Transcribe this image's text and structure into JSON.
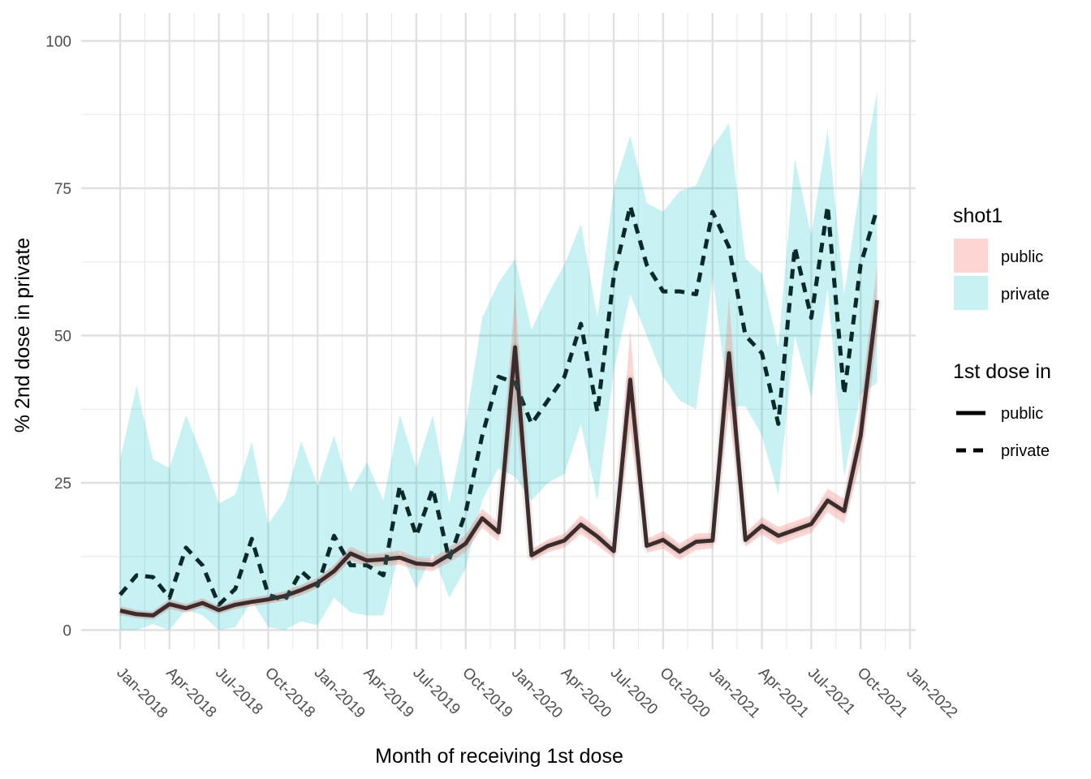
{
  "chart_data": {
    "type": "line",
    "xlabel": "Month of receiving 1st dose",
    "ylabel": "% 2nd dose in private",
    "ylim": [
      0,
      100
    ],
    "yticks": [
      0,
      25,
      50,
      75,
      100
    ],
    "xlim": [
      "2018-01",
      "2022-01"
    ],
    "x_tick_labels": [
      "Jan-2018",
      "Apr-2018",
      "Jul-2018",
      "Oct-2018",
      "Jan-2019",
      "Apr-2019",
      "Jul-2019",
      "Oct-2019",
      "Jan-2020",
      "Apr-2020",
      "Jul-2020",
      "Oct-2020",
      "Jan-2021",
      "Apr-2021",
      "Jul-2021",
      "Oct-2021",
      "Jan-2022"
    ],
    "x": [
      "2018-01",
      "2018-02",
      "2018-03",
      "2018-04",
      "2018-05",
      "2018-06",
      "2018-07",
      "2018-08",
      "2018-09",
      "2018-10",
      "2018-11",
      "2018-12",
      "2019-01",
      "2019-02",
      "2019-03",
      "2019-04",
      "2019-05",
      "2019-06",
      "2019-07",
      "2019-08",
      "2019-09",
      "2019-10",
      "2019-11",
      "2019-12",
      "2020-01",
      "2020-02",
      "2020-03",
      "2020-04",
      "2020-05",
      "2020-06",
      "2020-07",
      "2020-08",
      "2020-09",
      "2020-10",
      "2020-11",
      "2020-12",
      "2021-01",
      "2021-02",
      "2021-03",
      "2021-04",
      "2021-05",
      "2021-06",
      "2021-07",
      "2021-08",
      "2021-09",
      "2021-10",
      "2021-11"
    ],
    "grid": true,
    "legend_position": "right",
    "fill_legend": {
      "title": "shot1",
      "items": [
        {
          "label": "public",
          "color": "#F8766D"
        },
        {
          "label": "private",
          "color": "#00BFC4"
        }
      ]
    },
    "linetype_legend": {
      "title": "1st dose in",
      "items": [
        {
          "label": "public",
          "dash": "solid"
        },
        {
          "label": "private",
          "dash": "dashed"
        }
      ]
    },
    "series": [
      {
        "name": "public",
        "linetype": "solid",
        "fill": "#F8766D",
        "values": [
          3.3,
          2.7,
          2.5,
          4.4,
          3.7,
          4.6,
          3.4,
          4.3,
          4.8,
          5.2,
          5.8,
          6.8,
          8.0,
          10.0,
          13.0,
          11.8,
          12.0,
          12.3,
          11.3,
          11.1,
          12.8,
          14.7,
          19.0,
          16.6,
          48.0,
          12.7,
          14.3,
          15.2,
          17.9,
          15.9,
          13.4,
          42.5,
          14.3,
          15.3,
          13.3,
          15.0,
          15.2,
          47.0,
          15.3,
          17.7,
          16.0,
          17.0,
          18.0,
          22.0,
          20.2,
          33.0,
          56.0
        ],
        "lower": [
          2.6,
          2.1,
          1.9,
          3.6,
          3.0,
          3.8,
          2.8,
          3.6,
          4.1,
          4.5,
          5.0,
          5.9,
          7.1,
          9.0,
          11.8,
          10.7,
          10.9,
          11.1,
          10.2,
          10.0,
          11.5,
          13.2,
          17.4,
          15.0,
          38.5,
          11.7,
          13.2,
          14.0,
          16.3,
          14.4,
          12.2,
          34.0,
          13.1,
          13.8,
          11.9,
          13.6,
          13.9,
          37.5,
          14.1,
          16.2,
          14.5,
          15.5,
          16.5,
          20.0,
          18.1,
          28.5,
          50.0
        ],
        "upper": [
          4.0,
          3.3,
          3.1,
          5.2,
          4.4,
          5.4,
          4.0,
          5.0,
          5.5,
          5.9,
          6.6,
          7.7,
          8.9,
          11.0,
          14.2,
          12.9,
          13.1,
          13.5,
          12.4,
          12.2,
          14.1,
          16.2,
          20.6,
          18.2,
          57.5,
          13.7,
          15.4,
          16.4,
          19.5,
          17.4,
          14.6,
          51.0,
          15.5,
          16.8,
          14.7,
          16.4,
          16.5,
          56.5,
          16.5,
          19.2,
          17.5,
          18.5,
          19.5,
          24.0,
          22.3,
          37.5,
          62.0
        ]
      },
      {
        "name": "private",
        "linetype": "dashed",
        "fill": "#00BFC4",
        "values": [
          6.0,
          9.3,
          9.0,
          5.5,
          14.0,
          11.0,
          4.3,
          7.0,
          15.5,
          6.0,
          5.0,
          10.0,
          7.5,
          16.0,
          11.0,
          11.0,
          9.3,
          24.5,
          16.0,
          24.0,
          12.0,
          20.0,
          33.0,
          43.0,
          42.0,
          35.0,
          39.0,
          43.0,
          52.0,
          37.0,
          60.0,
          72.0,
          62.0,
          57.5,
          57.5,
          57.0,
          71.0,
          65.0,
          50.0,
          47.0,
          35.0,
          65.0,
          53.0,
          72.0,
          40.0,
          62.0,
          71.5
        ],
        "lower": [
          0.0,
          0.0,
          1.0,
          0.0,
          3.5,
          2.5,
          0.0,
          0.5,
          5.0,
          0.5,
          0.0,
          1.5,
          0.8,
          5.5,
          3.0,
          2.5,
          2.5,
          13.5,
          7.0,
          13.0,
          5.5,
          10.5,
          22.0,
          27.5,
          26.0,
          22.0,
          25.0,
          26.5,
          35.0,
          22.0,
          44.0,
          57.0,
          50.0,
          43.0,
          39.0,
          37.5,
          60.0,
          38.0,
          38.0,
          33.0,
          23.0,
          50.0,
          39.5,
          58.0,
          26.0,
          40.0,
          42.0
        ],
        "upper": [
          29.0,
          41.5,
          29.0,
          27.5,
          36.5,
          29.5,
          21.5,
          23.0,
          32.0,
          18.0,
          22.0,
          32.0,
          24.5,
          33.0,
          23.5,
          28.5,
          22.0,
          36.5,
          27.5,
          36.5,
          21.5,
          35.0,
          53.0,
          59.0,
          63.0,
          51.0,
          57.0,
          62.0,
          69.0,
          53.0,
          75.0,
          84.0,
          72.5,
          71.0,
          74.5,
          75.5,
          82.0,
          86.0,
          63.0,
          60.5,
          48.0,
          80.0,
          67.0,
          85.0,
          57.0,
          76.0,
          91.5
        ]
      }
    ]
  }
}
